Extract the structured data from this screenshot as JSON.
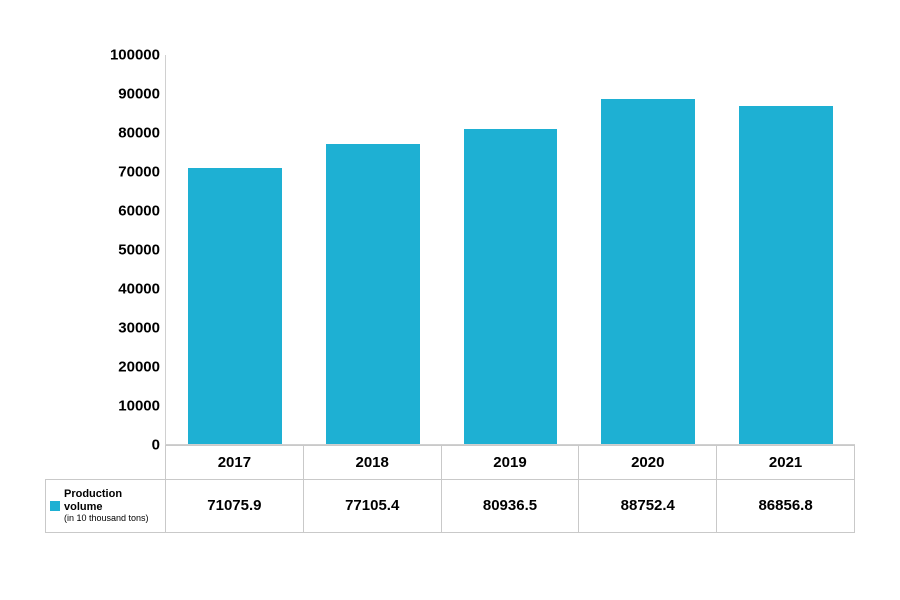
{
  "chart": {
    "type": "bar",
    "categories": [
      "2017",
      "2018",
      "2019",
      "2020",
      "2021"
    ],
    "values": [
      71075.9,
      77105.4,
      80936.5,
      88752.4,
      86856.8
    ],
    "bar_color": "#1eb0d3",
    "background_color": "#ffffff",
    "border_color": "#c9c9c9",
    "ylim_min": 0,
    "ylim_max": 100000,
    "ytick_step": 10000,
    "yticks": [
      "0",
      "10000",
      "20000",
      "30000",
      "40000",
      "50000",
      "60000",
      "70000",
      "80000",
      "90000",
      "100000"
    ],
    "bar_width_ratio": 0.68,
    "tick_fontsize": 15,
    "tick_fontweight": "700",
    "legend": {
      "swatch_color": "#1eb0d3",
      "line1": "Production volume",
      "line2": "(in 10 thousand tons)"
    }
  }
}
